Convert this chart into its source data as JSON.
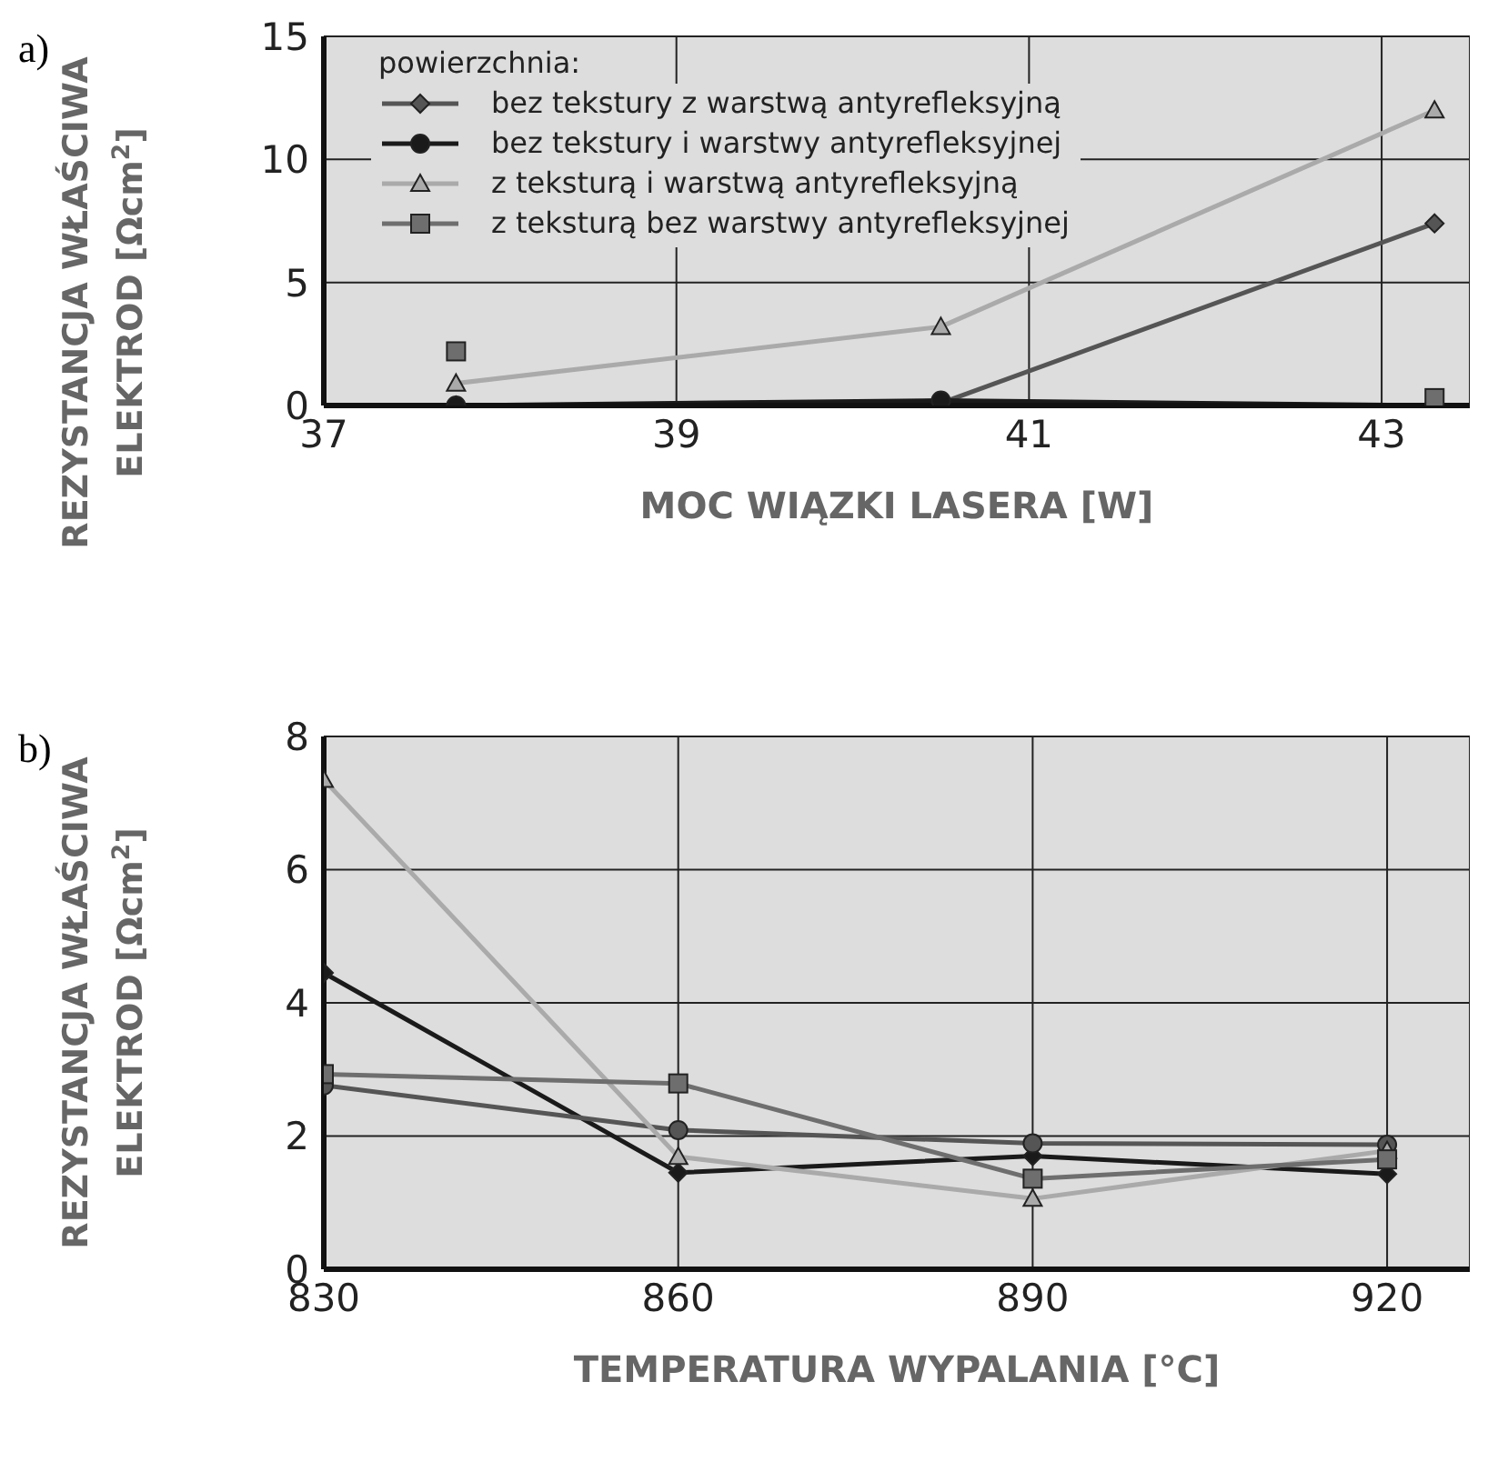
{
  "chart_data": [
    {
      "type": "line",
      "annotations": [
        "a)"
      ],
      "xlabel": "MOC WIĄZKI LASERA [W]",
      "ylabel": "REZYSTANCJA WŁAŚCIWA\nELEKTROD [Ωcm$^{2}$]",
      "legend_title": "powierzchnia:",
      "legend": "top left",
      "grid": true,
      "x": [
        37.75,
        40.5,
        43.3
      ],
      "xlim": [
        37,
        43.5
      ],
      "xticks": [
        37,
        39,
        41,
        43
      ],
      "ylim": [
        0,
        15
      ],
      "yticks": [
        0,
        5,
        10,
        15
      ],
      "series": [
        {
          "name": "bez tekstury z warstwą antyrefleksyjną",
          "color": "#555555",
          "marker": "diamond",
          "values": [
            0,
            0.1,
            7.4
          ]
        },
        {
          "name": "bez tekstury i warstwy antyrefleksyjnej",
          "color": "#1a1a1a",
          "marker": "circle",
          "values": [
            0,
            0.2,
            0
          ]
        },
        {
          "name": "z teksturą i warstwą antyrefleksyjną",
          "color": "#aaaaaa",
          "marker": "triangle",
          "values": [
            0.9,
            3.2,
            12.0
          ]
        },
        {
          "name": "z teksturą bez warstwy antyrefleksyjnej",
          "type": "scatter",
          "color": "#6e6e6e",
          "marker": "square",
          "values": [
            2.2,
            null,
            0.3
          ]
        }
      ]
    },
    {
      "type": "line",
      "annotations": [
        "b)"
      ],
      "xlabel": "TEMPERATURA WYPALANIA [°C]",
      "ylabel": "REZYSTANCJA WŁAŚCIWA\nELEKTROD  [Ωcm$^{2}$]",
      "grid": true,
      "x": [
        830,
        860,
        890,
        920
      ],
      "xlim": [
        830,
        927
      ],
      "xticks": [
        830,
        860,
        890,
        920
      ],
      "ylim": [
        0,
        8
      ],
      "yticks": [
        0,
        2,
        4,
        6,
        8
      ],
      "series": [
        {
          "color": "#1a1a1a",
          "marker": "diamond",
          "values": [
            4.45,
            1.45,
            1.7,
            1.43
          ]
        },
        {
          "color": "#555555",
          "marker": "circle",
          "values": [
            2.76,
            2.09,
            1.89,
            1.87
          ]
        },
        {
          "color": "#aaaaaa",
          "marker": "triangle",
          "values": [
            7.35,
            1.69,
            1.06,
            1.78
          ]
        },
        {
          "color": "#6e6e6e",
          "marker": "square",
          "values": [
            2.93,
            2.79,
            1.36,
            1.65
          ]
        }
      ]
    }
  ]
}
